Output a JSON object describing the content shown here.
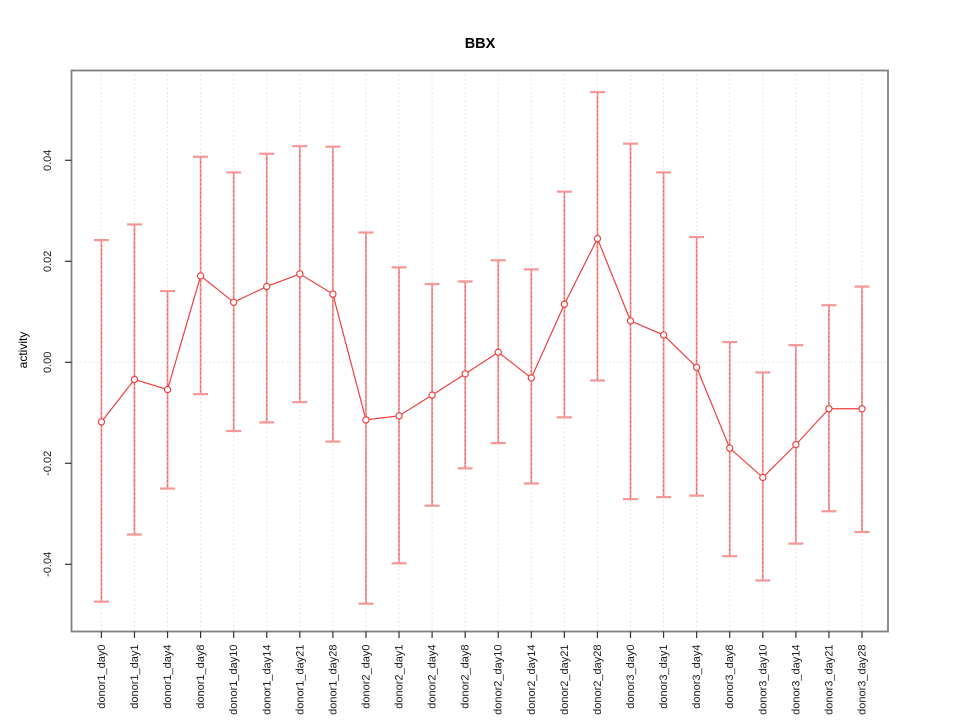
{
  "title": "BBX",
  "ylabel": "activity",
  "colors": {
    "point": "#ef4141",
    "line": "#ef4141",
    "errorbar_pale": "#f59797",
    "errorbar_dash": "#e25555",
    "grid": "#dedede",
    "zero_line": "#e2e2e2",
    "frame": "#818181",
    "tick": "#333333"
  },
  "chart_data": {
    "type": "line",
    "title": "BBX",
    "xlabel": "",
    "ylabel": "activity",
    "ylim": [
      -0.05,
      0.0555
    ],
    "ytick_values": [
      0.04,
      0.02,
      0.0,
      -0.02,
      -0.04
    ],
    "ytick_labels": [
      "0.04",
      "0.02",
      "0.00",
      "-0.02",
      "-0.04"
    ],
    "grid": "vertical dotted gridline per category; dotted horizontal line at 0",
    "legend_position": "none",
    "categories": [
      "donor1_day0",
      "donor1_day1",
      "donor1_day4",
      "donor1_day8",
      "donor1_day10",
      "donor1_day14",
      "donor1_day21",
      "donor1_day28",
      "donor2_day0",
      "donor2_day1",
      "donor2_day4",
      "donor2_day8",
      "donor2_day10",
      "donor2_day14",
      "donor2_day21",
      "donor2_day28",
      "donor3_day0",
      "donor3_day1",
      "donor3_day4",
      "donor3_day8",
      "donor3_day10",
      "donor3_day14",
      "donor3_day21",
      "donor3_day28"
    ],
    "series": [
      {
        "name": "activity",
        "marker": "open-circle",
        "values": [
          -0.0118,
          -0.0034,
          -0.0054,
          0.0171,
          0.0119,
          0.015,
          0.0175,
          0.0135,
          -0.0114,
          -0.0106,
          -0.0065,
          -0.0023,
          0.002,
          -0.0031,
          0.0115,
          0.0245,
          0.0082,
          0.0054,
          -0.001,
          -0.017,
          -0.0228,
          -0.0163,
          -0.0092,
          -0.0092
        ],
        "err_high": [
          0.0242,
          0.0273,
          0.0141,
          0.0407,
          0.0376,
          0.0413,
          0.0428,
          0.0427,
          0.0257,
          0.0188,
          0.0155,
          0.016,
          0.0202,
          0.0184,
          0.0338,
          0.0535,
          0.0433,
          0.0376,
          0.0248,
          0.004,
          -0.002,
          0.0034,
          0.0113,
          0.015
        ],
        "err_low": [
          -0.0474,
          -0.0341,
          -0.025,
          -0.0063,
          -0.0136,
          -0.0119,
          -0.0079,
          -0.0157,
          -0.0478,
          -0.0398,
          -0.0284,
          -0.021,
          -0.016,
          -0.024,
          -0.0109,
          -0.0036,
          -0.0271,
          -0.0267,
          -0.0264,
          -0.0384,
          -0.0432,
          -0.0359,
          -0.0295,
          -0.0336
        ]
      }
    ]
  }
}
